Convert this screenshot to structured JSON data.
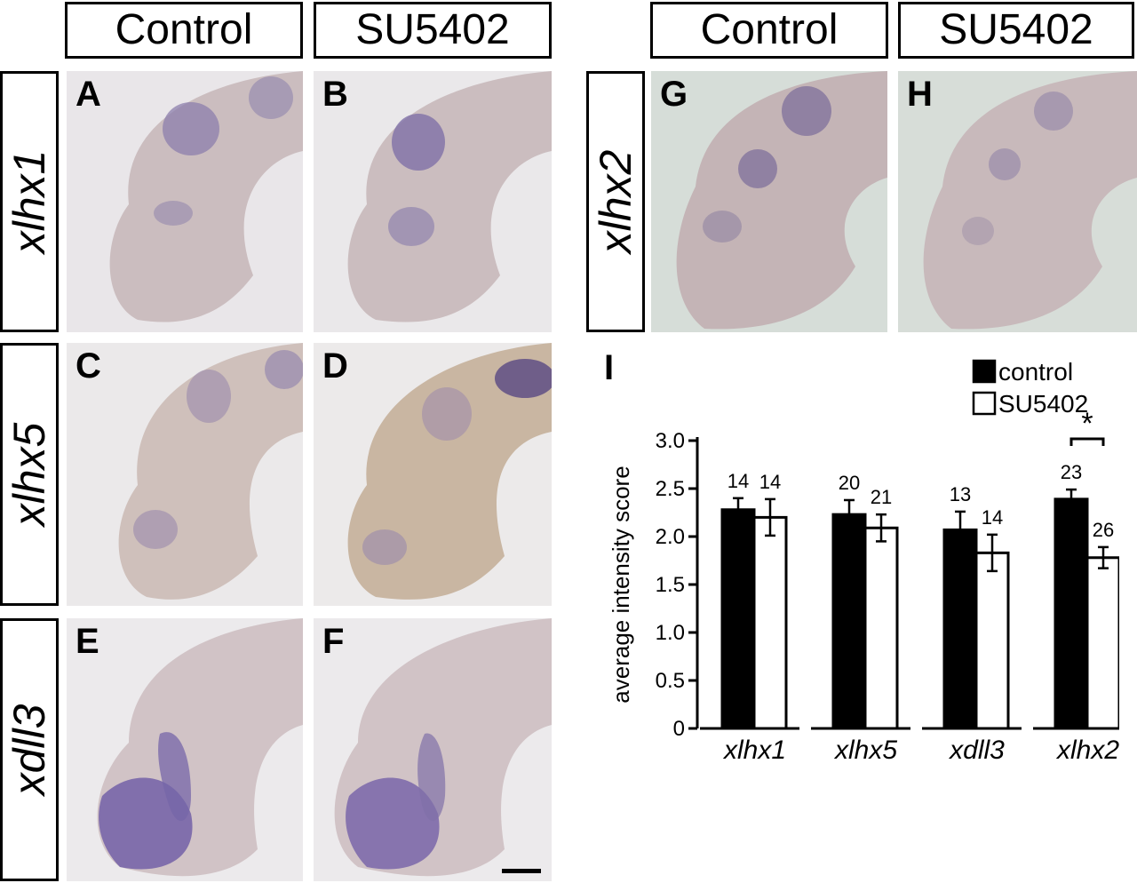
{
  "headers": {
    "left_control": "Control",
    "left_su": "SU5402",
    "right_control": "Control",
    "right_su": "SU5402"
  },
  "row_labels": {
    "xlhx1": "xlhx1",
    "xlhx5": "xlhx5",
    "xdll3": "xdll3",
    "xlhx2": "xlhx2"
  },
  "panels": {
    "A": "A",
    "B": "B",
    "C": "C",
    "D": "D",
    "E": "E",
    "F": "F",
    "G": "G",
    "H": "H",
    "I": "I"
  },
  "chart_data": {
    "type": "bar",
    "title": "",
    "xlabel": "",
    "ylabel": "average intensity score",
    "ylim": [
      0,
      3.0
    ],
    "yticks": [
      "0",
      "0.5",
      "1.0",
      "1.5",
      "2.0",
      "2.5",
      "3.0"
    ],
    "categories": [
      "xlhx1",
      "xlhx5",
      "xdll3",
      "xlhx2"
    ],
    "series": [
      {
        "name": "control",
        "color": "#000000",
        "values": [
          2.28,
          2.23,
          2.07,
          2.39
        ],
        "errors": [
          0.12,
          0.15,
          0.19,
          0.1
        ],
        "counts": [
          "14",
          "20",
          "13",
          "23"
        ]
      },
      {
        "name": "SU5402",
        "color": "#ffffff",
        "values": [
          2.2,
          2.09,
          1.83,
          1.78
        ],
        "errors": [
          0.19,
          0.14,
          0.19,
          0.11
        ],
        "counts": [
          "14",
          "21",
          "14",
          "26"
        ]
      }
    ],
    "significance": {
      "category": "xlhx2",
      "symbol": "*"
    },
    "legend_position": "top-right"
  }
}
